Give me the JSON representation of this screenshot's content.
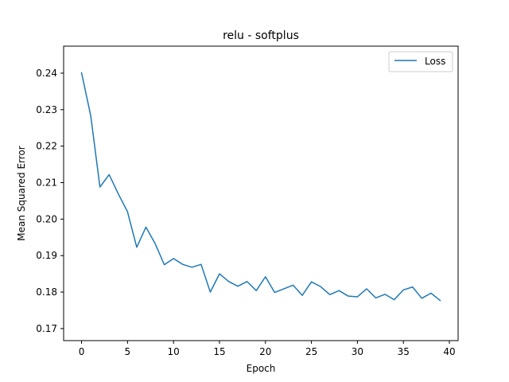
{
  "chart_data": {
    "type": "line",
    "title": "relu - softplus",
    "xlabel": "Epoch",
    "ylabel": "Mean Squared Error",
    "xlim": [
      -1.95,
      40.95
    ],
    "ylim": [
      0.1667,
      0.2474
    ],
    "xticks": [
      0,
      5,
      10,
      15,
      20,
      25,
      30,
      35,
      40
    ],
    "yticks": [
      0.17,
      0.18,
      0.19,
      0.2,
      0.21,
      0.22,
      0.23,
      0.24
    ],
    "ytick_labels": [
      "0.17",
      "0.18",
      "0.19",
      "0.20",
      "0.21",
      "0.22",
      "0.23",
      "0.24"
    ],
    "grid": false,
    "legend_position": "top-right",
    "series": [
      {
        "name": "Loss",
        "color": "#1f77b4",
        "x": [
          0,
          1,
          2,
          3,
          4,
          5,
          6,
          7,
          8,
          9,
          10,
          11,
          12,
          13,
          14,
          15,
          16,
          17,
          18,
          19,
          20,
          21,
          22,
          23,
          24,
          25,
          26,
          27,
          28,
          29,
          30,
          31,
          32,
          33,
          34,
          35,
          36,
          37,
          38,
          39
        ],
        "y": [
          0.2401,
          0.2283,
          0.2088,
          0.2122,
          0.2069,
          0.202,
          0.1923,
          0.1978,
          0.1933,
          0.1875,
          0.1892,
          0.1876,
          0.1868,
          0.1876,
          0.18,
          0.185,
          0.1829,
          0.1816,
          0.1829,
          0.1804,
          0.1842,
          0.1799,
          0.1809,
          0.1819,
          0.1791,
          0.1828,
          0.1815,
          0.1793,
          0.1804,
          0.1789,
          0.1787,
          0.1809,
          0.1784,
          0.1794,
          0.1779,
          0.1806,
          0.1814,
          0.1783,
          0.1797,
          0.1777
        ]
      }
    ]
  }
}
